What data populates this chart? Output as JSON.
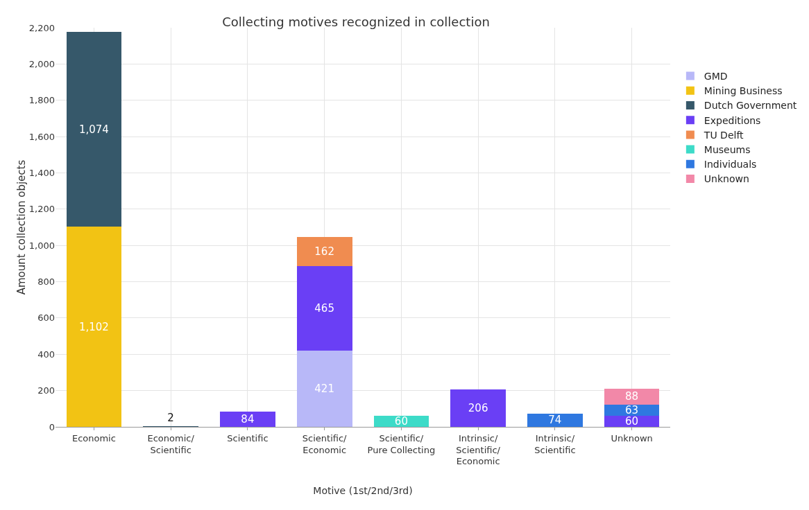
{
  "chart_data": {
    "type": "bar",
    "title": "Collecting motives recognized in collection",
    "xlabel": "Motive (1st/2nd/3rd)",
    "ylabel": "Amount collection objects",
    "categories": [
      "Economic",
      "Economic/Scientific",
      "Scientific",
      "Scientific/Economic",
      "Scientific/Pure Collecting",
      "Intrinsic/Scientific/Economic",
      "Intrinsic/Scientific",
      "Unknown"
    ],
    "series": [
      {
        "name": "GMD",
        "color": "#b8b8f8",
        "values": [
          null,
          null,
          null,
          421,
          null,
          null,
          null,
          null
        ]
      },
      {
        "name": "Mining Business",
        "color": "#f2c314",
        "values": [
          1102,
          null,
          null,
          null,
          null,
          null,
          null,
          null
        ],
        "value_labels": [
          "1,102",
          null,
          null,
          null,
          null,
          null,
          null,
          null
        ]
      },
      {
        "name": "Dutch Government",
        "color": "#36586a",
        "values": [
          1074,
          2,
          null,
          null,
          null,
          null,
          null,
          null
        ],
        "value_labels": [
          "1,074",
          "2",
          null,
          null,
          null,
          null,
          null,
          null
        ]
      },
      {
        "name": "Expeditions",
        "color": "#6a3ff5",
        "values": [
          null,
          null,
          84,
          465,
          null,
          206,
          null,
          60
        ]
      },
      {
        "name": "TU Delft",
        "color": "#f08c50",
        "values": [
          null,
          null,
          null,
          162,
          null,
          null,
          null,
          null
        ]
      },
      {
        "name": "Museums",
        "color": "#3ddbc8",
        "values": [
          null,
          null,
          null,
          null,
          60,
          null,
          null,
          null
        ]
      },
      {
        "name": "Individuals",
        "color": "#2f78e0",
        "values": [
          null,
          null,
          null,
          null,
          null,
          null,
          74,
          63
        ]
      },
      {
        "name": "Unknown",
        "color": "#f288a8",
        "values": [
          null,
          null,
          null,
          null,
          null,
          null,
          null,
          88
        ]
      }
    ],
    "stacked": true,
    "data_labels": true,
    "ylim": [
      0,
      2200
    ],
    "yticks": [
      0,
      {
        "value": 200,
        "label": "200"
      },
      {
        "value": 400,
        "label": "400"
      },
      {
        "value": 600,
        "label": "600"
      },
      {
        "value": 800,
        "label": "800"
      },
      {
        "value": 1000,
        "label": "1,000"
      },
      {
        "value": 1200,
        "label": "1,200"
      },
      {
        "value": 1400,
        "label": "1,400"
      },
      {
        "value": 1600,
        "label": "1,600"
      },
      {
        "value": 1800,
        "label": "1,800"
      },
      {
        "value": 2000,
        "label": "2,000"
      },
      {
        "value": 2200,
        "label": "2,200"
      }
    ],
    "grid": true,
    "legend": "right"
  }
}
